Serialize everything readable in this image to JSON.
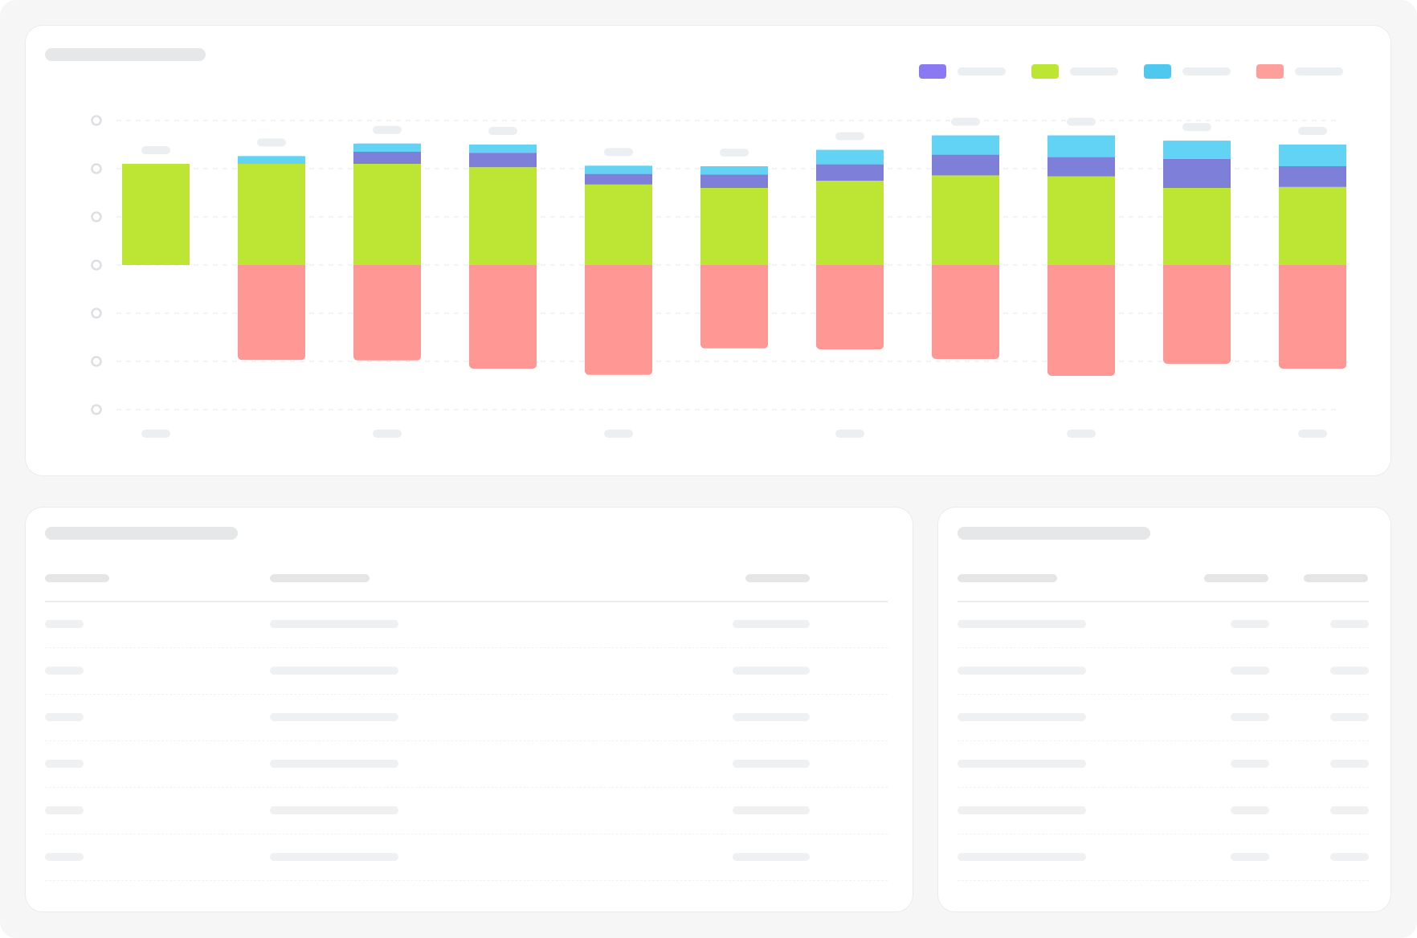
{
  "colors": {
    "background": "#f6f6f6",
    "card": "#ffffff",
    "placeholder": "#e6e7e9",
    "series_purple": "#7e7fd9",
    "series_green": "#bce534",
    "series_cyan": "#62d2f5",
    "series_red": "#ff9895",
    "legend_purple": "#8a79f2",
    "legend_green": "#bce534",
    "legend_cyan": "#4fc8f0",
    "legend_red": "#ff9f9b"
  },
  "chart_data": {
    "type": "bar",
    "stacked": true,
    "title": "",
    "xlabel": "",
    "ylabel": "",
    "ylim": [
      -3,
      3
    ],
    "grid": true,
    "legend_position": "top-right",
    "categories": [
      "",
      "",
      "",
      "",
      "",
      "",
      "",
      "",
      "",
      "",
      ""
    ],
    "series": [
      {
        "color": "#bce534",
        "values": [
          2.1,
          2.1,
          2.1,
          2.03,
          1.67,
          1.6,
          1.75,
          1.86,
          1.84,
          1.6,
          1.62
        ]
      },
      {
        "color": "#7e7fd9",
        "values": [
          0,
          0,
          0.25,
          0.3,
          0.22,
          0.28,
          0.34,
          0.43,
          0.4,
          0.6,
          0.43
        ]
      },
      {
        "color": "#62d2f5",
        "values": [
          0,
          0.16,
          0.17,
          0.17,
          0.17,
          0.17,
          0.3,
          0.4,
          0.45,
          0.38,
          0.45
        ]
      },
      {
        "color": "#ff9895",
        "values": [
          0,
          -1.97,
          -1.98,
          -2.15,
          -2.28,
          -1.73,
          -1.75,
          -1.95,
          -2.3,
          -2.05,
          -2.15
        ]
      }
    ]
  }
}
